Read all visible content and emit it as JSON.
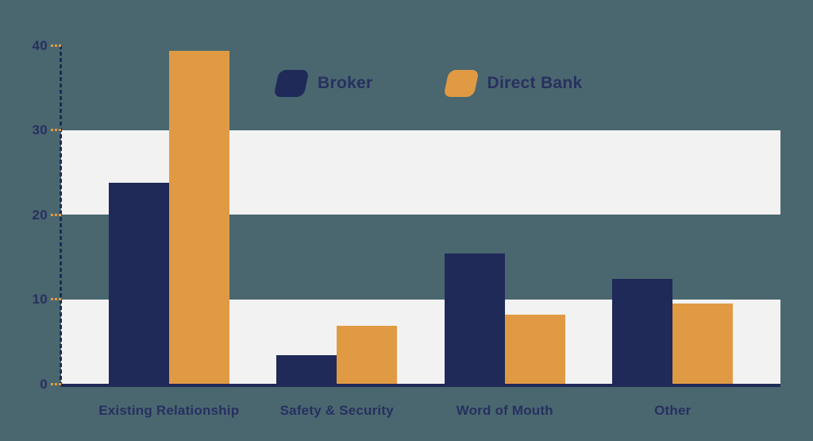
{
  "chart_data": {
    "type": "bar",
    "title": "",
    "categories": [
      "Existing Relationship",
      "Safety & Security",
      "Word of Mouth",
      "Other"
    ],
    "series": [
      {
        "name": "Broker",
        "color": "#1f2a58",
        "values": [
          23.8,
          3.4,
          15.4,
          12.4
        ]
      },
      {
        "name": "Direct Bank",
        "color": "#e19a44",
        "values": [
          39.3,
          6.9,
          8.2,
          9.5
        ]
      }
    ],
    "xlabel": "",
    "ylabel": "",
    "ylim": [
      0,
      40
    ],
    "y_ticks": [
      0,
      10,
      20,
      30,
      40
    ],
    "grid": "alternating-horizontal-bands",
    "bands": [
      [
        0,
        10
      ],
      [
        20,
        30
      ]
    ],
    "legend_position": "top-center",
    "colors": {
      "background": "#4a6770",
      "band": "#f2f2f2",
      "axis": "#1f2a58",
      "tick": "#e19a44",
      "text": "#27305f"
    }
  },
  "legend": {
    "items": [
      {
        "label": "Broker"
      },
      {
        "label": "Direct Bank"
      }
    ]
  }
}
